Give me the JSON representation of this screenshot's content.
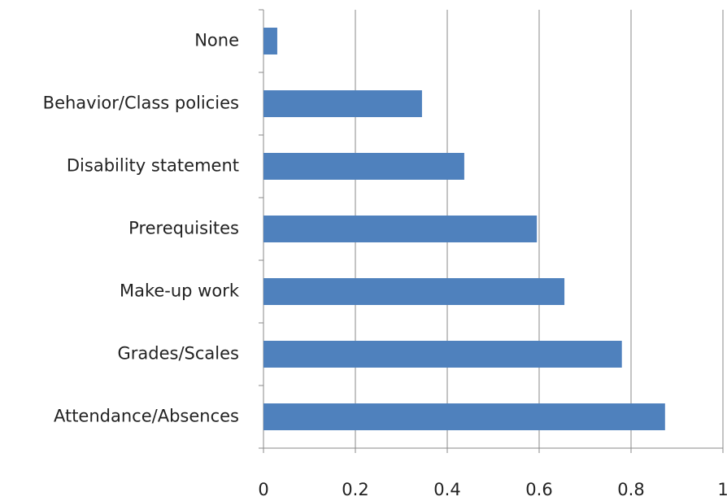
{
  "chart_data": {
    "type": "bar",
    "orientation": "horizontal",
    "categories": [
      "None",
      "Behavior/Class policies",
      "Disability statement",
      "Prerequisites",
      "Make-up work",
      "Grades/Scales",
      "Attendance/Absences"
    ],
    "values": [
      0.03,
      0.345,
      0.437,
      0.595,
      0.655,
      0.78,
      0.874
    ],
    "color": "#4f81bd",
    "xlim": [
      0,
      1
    ],
    "xticks": [
      0,
      0.2,
      0.4,
      0.6,
      0.8,
      1
    ],
    "grid": true
  }
}
